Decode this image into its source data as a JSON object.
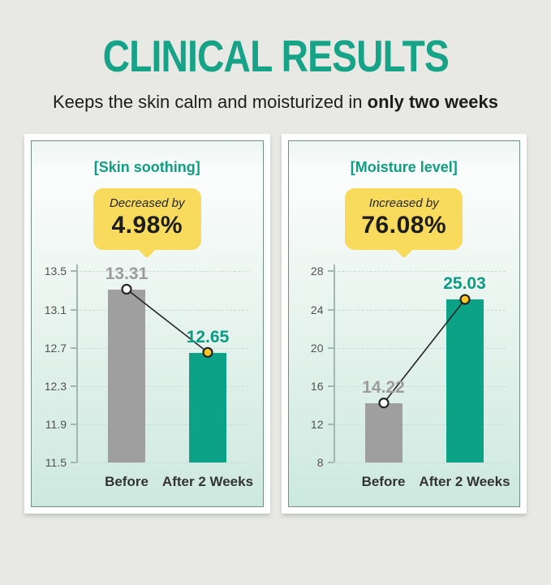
{
  "page": {
    "title": "CLINICAL RESULTS",
    "subtitle_regular": "Keeps the skin calm and moisturized in ",
    "subtitle_bold": "only two weeks"
  },
  "colors": {
    "page_background": "#e8e9e4",
    "teal": "#0ba287",
    "teal_text": "#0f9e84",
    "gray_bar": "#9f9f9f",
    "gray_value_text": "#9c9c9c",
    "callout_yellow": "#f8da5c",
    "marker_yellow": "#fdc725",
    "marker_white": "#ffffff",
    "connector_line": "#242424",
    "dark_text": "#1d1d1d"
  },
  "chart_data": [
    {
      "type": "bar",
      "panel_title": "[Skin soothing]",
      "callout": {
        "label": "Decreased by",
        "value": "4.98%"
      },
      "categories": [
        "Before",
        "After 2 Weeks"
      ],
      "values": [
        13.31,
        12.65
      ],
      "value_labels": [
        "13.31",
        "12.65"
      ],
      "value_label_colors": [
        "#9c9c9c",
        "#0b9b83"
      ],
      "bar_colors": [
        "#9f9f9f",
        "#0ba287"
      ],
      "marker_fills": [
        "#ffffff",
        "#fdc725"
      ],
      "ytick_labels": [
        "13.5",
        "13.1",
        "12.7",
        "12.3",
        "11.9",
        "11.5"
      ],
      "ylim": [
        11.5,
        13.5
      ],
      "xlabel": "",
      "ylabel": "",
      "grid": true,
      "legend": false
    },
    {
      "type": "bar",
      "panel_title": "[Moisture level]",
      "callout": {
        "label": "Increased by",
        "value": "76.08%"
      },
      "categories": [
        "Before",
        "After 2 Weeks"
      ],
      "values": [
        14.22,
        25.03
      ],
      "value_labels": [
        "14.22",
        "25.03"
      ],
      "value_label_colors": [
        "#9c9c9c",
        "#0b9b83"
      ],
      "bar_colors": [
        "#9f9f9f",
        "#0ba287"
      ],
      "marker_fills": [
        "#ffffff",
        "#fdc725"
      ],
      "ytick_labels": [
        "28",
        "24",
        "20",
        "16",
        "12",
        "8"
      ],
      "ylim": [
        8,
        28
      ],
      "xlabel": "",
      "ylabel": "",
      "grid": true,
      "legend": false
    }
  ]
}
